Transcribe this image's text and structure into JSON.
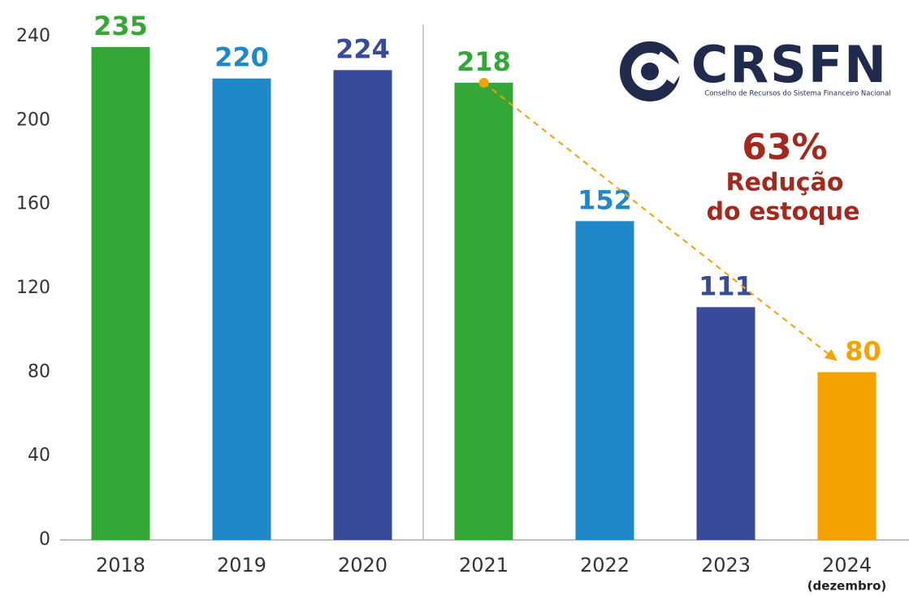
{
  "chart_data": {
    "type": "bar",
    "categories": [
      "2018",
      "2019",
      "2020",
      "2021",
      "2022",
      "2023",
      "2024"
    ],
    "values": [
      235,
      220,
      224,
      218,
      152,
      111,
      80
    ],
    "colors": [
      "#34a836",
      "#1e88c8",
      "#3a4a9a",
      "#34a836",
      "#1e88c8",
      "#3a4a9a",
      "#f5a100"
    ],
    "ylim": [
      0,
      240
    ],
    "yticks": [
      0,
      40,
      80,
      120,
      160,
      200,
      240
    ],
    "grid": false,
    "category_note": "(dezembro)",
    "callout": {
      "label": "63%",
      "lines": [
        "Redução",
        "do estoque"
      ]
    },
    "logo": {
      "name": "CRSFN",
      "subtitle": "Conselho de Recursos do Sistema Financeiro Nacional"
    }
  }
}
